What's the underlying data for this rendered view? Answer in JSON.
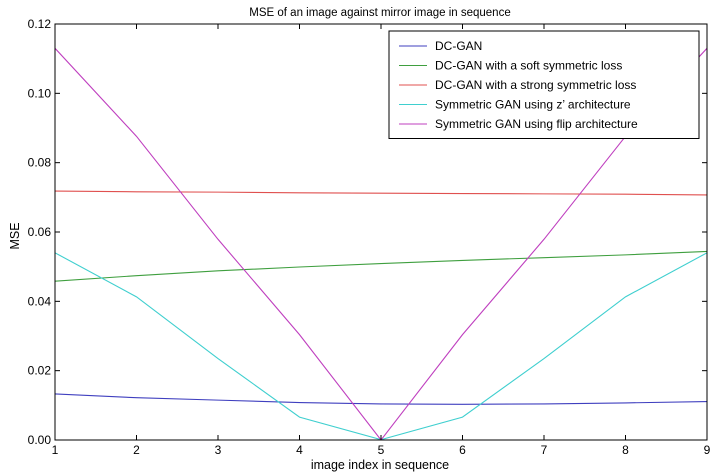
{
  "chart_data": {
    "type": "line",
    "title": "MSE of an image against mirror image in sequence",
    "xlabel": "image index in sequence",
    "ylabel": "MSE",
    "xlim": [
      1,
      9
    ],
    "ylim": [
      0,
      0.12
    ],
    "xticks": [
      1,
      2,
      3,
      4,
      5,
      6,
      7,
      8,
      9
    ],
    "yticks": [
      0.0,
      0.02,
      0.04,
      0.06,
      0.08,
      0.1,
      0.12
    ],
    "ytick_labels": [
      "0.00",
      "0.02",
      "0.04",
      "0.06",
      "0.08",
      "0.10",
      "0.12"
    ],
    "grid": false,
    "legend_position": "top-right",
    "x": [
      1,
      2,
      3,
      4,
      5,
      6,
      7,
      8,
      9
    ],
    "series": [
      {
        "name": "DC-GAN",
        "color": "#3f3fbf",
        "values": [
          0.0133,
          0.0122,
          0.0115,
          0.0108,
          0.0104,
          0.0103,
          0.0104,
          0.0107,
          0.0111
        ]
      },
      {
        "name": "DC-GAN with a soft symmetric loss",
        "color": "#3f9f3f",
        "values": [
          0.0458,
          0.0474,
          0.0488,
          0.0499,
          0.0509,
          0.0518,
          0.0526,
          0.0534,
          0.0544
        ]
      },
      {
        "name": "DC-GAN with a strong symmetric loss",
        "color": "#e0504f",
        "values": [
          0.0718,
          0.0716,
          0.0715,
          0.0713,
          0.0712,
          0.0711,
          0.071,
          0.0709,
          0.0707
        ]
      },
      {
        "name": "Symmetric GAN using z’ architecture",
        "color": "#3fcfcf",
        "values": [
          0.054,
          0.0413,
          0.0235,
          0.0066,
          0.0001,
          0.0066,
          0.0235,
          0.0413,
          0.054
        ]
      },
      {
        "name": "Symmetric GAN using flip architecture",
        "color": "#bf3fbf",
        "values": [
          0.113,
          0.0876,
          0.0579,
          0.0304,
          0.0,
          0.0304,
          0.0579,
          0.0876,
          0.113
        ]
      }
    ]
  }
}
